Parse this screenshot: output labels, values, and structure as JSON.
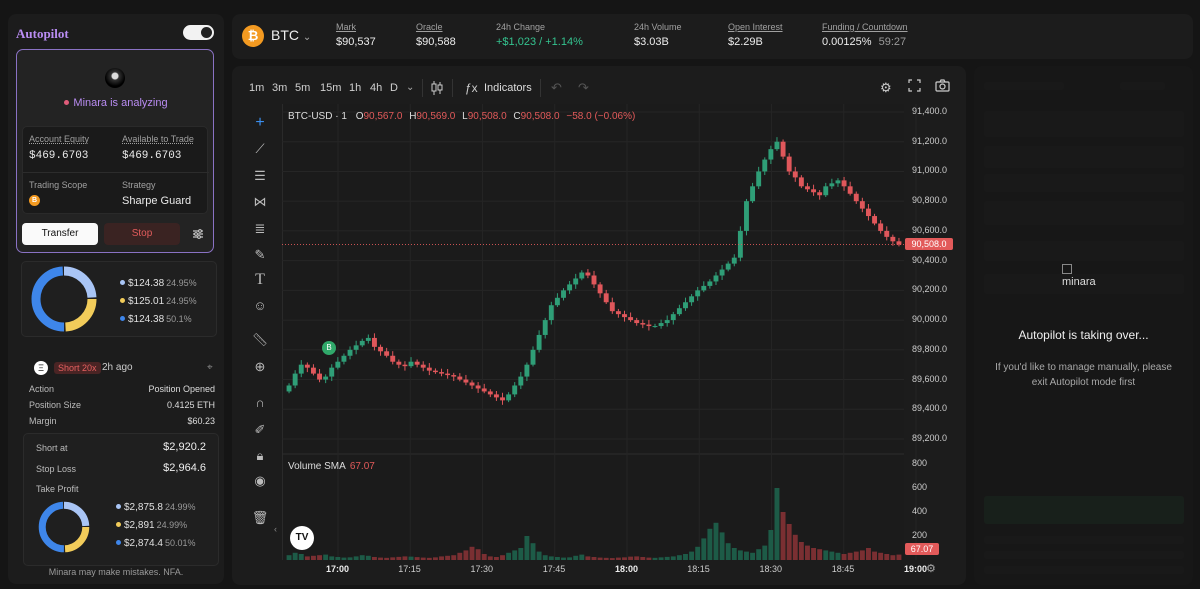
{
  "autopilot": {
    "title": "Autopilot",
    "toggle_on": true,
    "status": "Minara is analyzing",
    "account_equity_label": "Account Equity",
    "account_equity": "$469.6703",
    "available_label": "Available to Trade",
    "available": "$469.6703",
    "scope_label": "Trading Scope",
    "scope_coin": "B",
    "strategy_label": "Strategy",
    "strategy": "Sharpe Guard",
    "transfer_label": "Transfer",
    "stop_label": "Stop"
  },
  "allocation": {
    "items": [
      {
        "value": "$124.38",
        "pct": "24.95%",
        "color": "#a9c5f5"
      },
      {
        "value": "$125.01",
        "pct": "24.95%",
        "color": "#f2cc5a"
      },
      {
        "value": "$124.38",
        "pct": "50.1%",
        "color": "#3e86ea"
      }
    ]
  },
  "position": {
    "coin": "Ξ",
    "badge": "Short 20x",
    "time": "2h ago",
    "action_label": "Action",
    "action": "Position Opened",
    "size_label": "Position Size",
    "size": "0.4125 ETH",
    "margin_label": "Margin",
    "margin": "$60.23",
    "short_at_label": "Short at",
    "short_at": "$2,920.2",
    "stop_loss_label": "Stop Loss",
    "stop_loss": "$2,964.6",
    "take_profit_label": "Take Profit",
    "tp_items": [
      {
        "value": "$2,875.8",
        "pct": "24.99%",
        "color": "#a9c5f5"
      },
      {
        "value": "$2,891",
        "pct": "24.99%",
        "color": "#f2cc5a"
      },
      {
        "value": "$2,874.4",
        "pct": "50.01%",
        "color": "#3e86ea"
      }
    ]
  },
  "disclaimer": "Minara may make mistakes. NFA.",
  "header": {
    "coin": "₿",
    "symbol": "BTC",
    "mark_label": "Mark",
    "mark": "$90,537",
    "oracle_label": "Oracle",
    "oracle": "$90,588",
    "change_label": "24h Change",
    "change": "+$1,023 / +1.14%",
    "volume_label": "24h Volume",
    "volume": "$3.03B",
    "oi_label": "Open Interest",
    "oi": "$2.29B",
    "funding_label": "Funding / Countdown",
    "funding": "0.00125%",
    "countdown": "59:27"
  },
  "toolbar": {
    "timeframes": [
      "1m",
      "3m",
      "5m",
      "15m",
      "1h",
      "4h",
      "D"
    ],
    "active_timeframe": "1m",
    "indicators_label": "Indicators"
  },
  "chart_data": {
    "type": "candlestick",
    "symbol_line": "BTC-USD · 1",
    "ohlc": {
      "o": "90,567.0",
      "h": "90,569.0",
      "l": "90,508.0",
      "c": "90,508.0",
      "chg": "−58.0 (−0.06%)"
    },
    "last_price": "90,508.0",
    "volume_label": "Volume SMA",
    "volume_sma": "67.07",
    "y_ticks": [
      "91,400.0",
      "91,200.0",
      "91,000.0",
      "90,800.0",
      "90,600.0",
      "90,400.0",
      "90,200.0",
      "90,000.0",
      "89,800.0",
      "89,600.0",
      "89,400.0",
      "89,200.0"
    ],
    "ylim": [
      89200,
      91400
    ],
    "vol_ticks": [
      "800",
      "600",
      "400",
      "200"
    ],
    "vol_lim": [
      0,
      800
    ],
    "x_ticks": [
      {
        "label": "17:00",
        "bold": true
      },
      {
        "label": "17:15",
        "bold": false
      },
      {
        "label": "17:30",
        "bold": false
      },
      {
        "label": "17:45",
        "bold": false
      },
      {
        "label": "18:00",
        "bold": true
      },
      {
        "label": "18:15",
        "bold": false
      },
      {
        "label": "18:30",
        "bold": false
      },
      {
        "label": "18:45",
        "bold": false
      },
      {
        "label": "19:00",
        "bold": true
      }
    ],
    "marker": "B",
    "close_series": [
      89560,
      89640,
      89700,
      89680,
      89640,
      89600,
      89620,
      89680,
      89720,
      89760,
      89800,
      89830,
      89860,
      89880,
      89820,
      89790,
      89760,
      89720,
      89700,
      89690,
      89720,
      89700,
      89680,
      89660,
      89650,
      89640,
      89630,
      89620,
      89600,
      89580,
      89560,
      89540,
      89520,
      89500,
      89480,
      89460,
      89500,
      89560,
      89620,
      89700,
      89800,
      89900,
      90000,
      90100,
      90150,
      90200,
      90240,
      90280,
      90320,
      90300,
      90240,
      90180,
      90120,
      90060,
      90040,
      90020,
      90000,
      89980,
      89970,
      89960,
      89960,
      89980,
      90000,
      90040,
      90080,
      90120,
      90160,
      90200,
      90230,
      90260,
      90300,
      90340,
      90380,
      90420,
      90600,
      90800,
      90900,
      91000,
      91080,
      91150,
      91200,
      91100,
      91000,
      90960,
      90900,
      90880,
      90860,
      90840,
      90900,
      90920,
      90940,
      90900,
      90850,
      90800,
      90750,
      90700,
      90650,
      90600,
      90560,
      90530,
      90508
    ],
    "volume_series": [
      40,
      60,
      50,
      30,
      35,
      40,
      45,
      30,
      25,
      20,
      22,
      30,
      40,
      35,
      25,
      20,
      18,
      22,
      26,
      30,
      28,
      24,
      20,
      18,
      22,
      30,
      35,
      40,
      60,
      80,
      110,
      90,
      50,
      30,
      25,
      40,
      60,
      80,
      100,
      200,
      140,
      70,
      40,
      30,
      25,
      20,
      22,
      35,
      45,
      30,
      25,
      20,
      18,
      16,
      20,
      22,
      28,
      30,
      25,
      20,
      18,
      22,
      26,
      30,
      40,
      50,
      70,
      110,
      180,
      260,
      310,
      230,
      140,
      100,
      80,
      70,
      60,
      90,
      120,
      250,
      600,
      400,
      300,
      210,
      150,
      120,
      100,
      90,
      80,
      70,
      60,
      50,
      60,
      70,
      80,
      100,
      70,
      60,
      50,
      40,
      45
    ]
  },
  "right_panel": {
    "image_alt": "minara",
    "title": "Autopilot is taking over...",
    "subtitle": "If you'd like to manage manually, please exit Autopilot mode first"
  }
}
